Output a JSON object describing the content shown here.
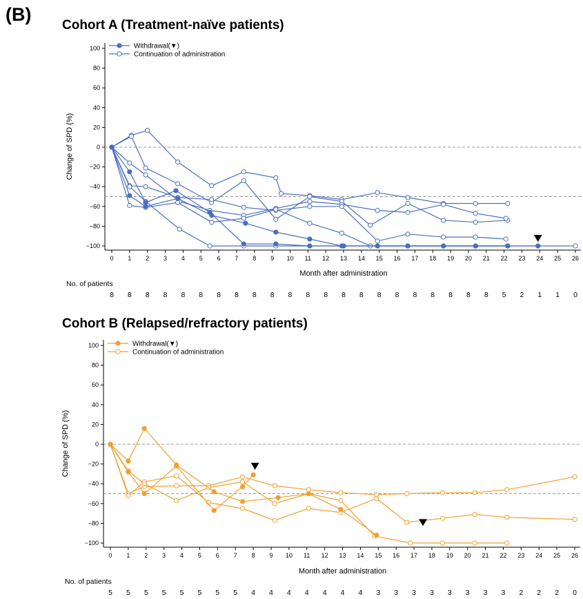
{
  "panel_label": "(B)",
  "chart_data": [
    {
      "type": "line",
      "title": "Cohort A (Treatment-naïve patients)",
      "xlabel": "Month after administration",
      "ylabel": "Change of SPD (%)",
      "xlim": [
        0,
        26
      ],
      "ylim": [
        -100,
        100
      ],
      "x_ticks": [
        0,
        1,
        2,
        3,
        4,
        5,
        6,
        7,
        8,
        9,
        10,
        11,
        12,
        13,
        14,
        15,
        16,
        17,
        18,
        19,
        20,
        21,
        22,
        23,
        24,
        25,
        26
      ],
      "y_ticks": [
        100,
        80,
        60,
        40,
        20,
        0,
        -20,
        -40,
        -60,
        -80,
        -100
      ],
      "reference_lines": [
        0,
        -50
      ],
      "grid": false,
      "legend_position": "top-left",
      "color": "#4a6fbf",
      "legend": [
        {
          "label": "Withdrawal(▼)",
          "marker": "filled-circle"
        },
        {
          "label": "Continuation of administration",
          "marker": "open-circle"
        }
      ],
      "withdrawal_markers": [
        {
          "x": 23.9,
          "y": -100
        }
      ],
      "patients_label": "No. of patients",
      "patients_counts": [
        8,
        8,
        8,
        8,
        8,
        8,
        8,
        8,
        8,
        8,
        8,
        8,
        8,
        8,
        8,
        8,
        8,
        8,
        8,
        8,
        8,
        8,
        5,
        2,
        1,
        1,
        0
      ],
      "series": [
        {
          "withdrawn": false,
          "points": [
            [
              0,
              0
            ],
            [
              1.1,
              12
            ],
            [
              2,
              17
            ],
            [
              3.7,
              -15
            ],
            [
              5.6,
              -39
            ],
            [
              7.4,
              -25
            ],
            [
              9.2,
              -31
            ],
            [
              9.5,
              -47
            ],
            [
              11.1,
              -49
            ],
            [
              12.9,
              -53
            ],
            [
              14.9,
              -46
            ],
            [
              16.6,
              -51
            ],
            [
              18.6,
              -57
            ],
            [
              20.4,
              -57
            ],
            [
              22.2,
              -57
            ]
          ]
        },
        {
          "withdrawn": false,
          "points": [
            [
              0,
              0
            ],
            [
              1.1,
              11
            ],
            [
              1.9,
              -21
            ],
            [
              3.7,
              -37
            ],
            [
              5.6,
              -56
            ],
            [
              7.4,
              -34
            ],
            [
              9.2,
              -73
            ],
            [
              11.1,
              -50
            ],
            [
              12.9,
              -55
            ],
            [
              14.5,
              -79
            ],
            [
              16.6,
              -57
            ],
            [
              18.6,
              -74
            ],
            [
              20.4,
              -76
            ],
            [
              22.2,
              -74
            ]
          ]
        },
        {
          "withdrawn": false,
          "points": [
            [
              0,
              0
            ],
            [
              1,
              -16
            ],
            [
              1.9,
              -28
            ],
            [
              3.8,
              -55
            ],
            [
              5.5,
              -64
            ],
            [
              7.4,
              -69
            ],
            [
              9.2,
              -62
            ],
            [
              11.1,
              -55
            ],
            [
              12.9,
              -58
            ],
            [
              14.9,
              -64
            ],
            [
              16.6,
              -66
            ],
            [
              18.6,
              -58
            ],
            [
              20.4,
              -67
            ],
            [
              22.1,
              -72
            ]
          ]
        },
        {
          "withdrawn": false,
          "points": [
            [
              0,
              0
            ],
            [
              1,
              -39
            ],
            [
              1.9,
              -40
            ],
            [
              3.7,
              -51
            ],
            [
              5.6,
              -53
            ],
            [
              7.4,
              -61
            ],
            [
              9.2,
              -64
            ],
            [
              11.1,
              -60
            ],
            [
              12.9,
              -60
            ],
            [
              14.9,
              -95
            ],
            [
              16.6,
              -88
            ],
            [
              18.6,
              -91
            ],
            [
              20.4,
              -91
            ],
            [
              22.1,
              -93
            ]
          ]
        },
        {
          "withdrawn": false,
          "points": [
            [
              0,
              0
            ],
            [
              1,
              -59
            ],
            [
              1.9,
              -61
            ],
            [
              3.7,
              -56
            ],
            [
              5.6,
              -76
            ],
            [
              7.4,
              -72
            ],
            [
              9.2,
              -63
            ],
            [
              11.1,
              -77
            ],
            [
              12.9,
              -87
            ],
            [
              14.5,
              -100
            ],
            [
              16.6,
              -100
            ],
            [
              18.6,
              -100
            ],
            [
              20.4,
              -100
            ],
            [
              22.2,
              -100
            ]
          ]
        },
        {
          "withdrawn": false,
          "points": [
            [
              0,
              0
            ],
            [
              1,
              -40
            ],
            [
              1.9,
              -55
            ],
            [
              3.8,
              -83
            ],
            [
              5.5,
              -100
            ],
            [
              7.4,
              -100
            ],
            [
              9.2,
              -100
            ],
            [
              11.1,
              -100
            ],
            [
              13,
              -100
            ],
            [
              14.9,
              -100
            ],
            [
              16.6,
              -100
            ],
            [
              18.6,
              -100
            ],
            [
              20.4,
              -100
            ],
            [
              22.2,
              -100
            ],
            [
              23.9,
              -100
            ],
            [
              26,
              -100
            ]
          ]
        },
        {
          "withdrawn": true,
          "points": [
            [
              0,
              0
            ],
            [
              1,
              -49
            ],
            [
              1.9,
              -60
            ],
            [
              3.7,
              -52
            ],
            [
              5.6,
              -69
            ],
            [
              7.5,
              -77
            ],
            [
              9.2,
              -86
            ],
            [
              11.1,
              -93
            ],
            [
              12.9,
              -100
            ],
            [
              14.9,
              -100
            ],
            [
              16.6,
              -100
            ],
            [
              18.6,
              -100
            ],
            [
              20.4,
              -100
            ],
            [
              22.2,
              -100
            ],
            [
              23.9,
              -100
            ]
          ]
        },
        {
          "withdrawn": true,
          "points": [
            [
              0,
              0
            ],
            [
              1,
              -25
            ],
            [
              1.9,
              -56
            ],
            [
              3.6,
              -44
            ],
            [
              5.5,
              -66
            ],
            [
              7.4,
              -98
            ],
            [
              9.2,
              -98
            ],
            [
              11.1,
              -100
            ],
            [
              13,
              -100
            ],
            [
              14.9,
              -100
            ],
            [
              16.6,
              -100
            ],
            [
              18.6,
              -100
            ],
            [
              20.4,
              -100
            ],
            [
              22.2,
              -100
            ]
          ]
        }
      ]
    },
    {
      "type": "line",
      "title": "Cohort B (Relapsed/refractory patients)",
      "xlabel": "Month after administration",
      "ylabel": "Change of SPD (%)",
      "xlim": [
        0,
        26
      ],
      "ylim": [
        -100,
        100
      ],
      "x_ticks": [
        0,
        1,
        2,
        3,
        4,
        5,
        6,
        7,
        8,
        9,
        10,
        11,
        12,
        13,
        14,
        15,
        16,
        17,
        18,
        19,
        20,
        21,
        22,
        23,
        24,
        25,
        26
      ],
      "y_ticks": [
        100,
        80,
        60,
        40,
        20,
        0,
        -20,
        -40,
        -60,
        -80,
        -100
      ],
      "reference_lines": [
        0,
        -50
      ],
      "grid": false,
      "legend_position": "top-left",
      "color": "#f0a030",
      "legend": [
        {
          "label": "Withdrawal(▼)",
          "marker": "filled-circle"
        },
        {
          "label": "Continuation of administration",
          "marker": "open-circle"
        }
      ],
      "withdrawal_markers": [
        {
          "x": 8.1,
          "y": -30
        },
        {
          "x": 17.5,
          "y": -87
        }
      ],
      "patients_label": "No. of patients",
      "patients_counts": [
        5,
        5,
        5,
        5,
        5,
        5,
        5,
        5,
        4,
        4,
        4,
        4,
        4,
        4,
        4,
        3,
        3,
        3,
        3,
        3,
        3,
        3,
        3,
        2,
        2,
        2,
        0
      ],
      "series": [
        {
          "withdrawn": false,
          "points": [
            [
              0,
              0
            ],
            [
              1,
              -50
            ],
            [
              1.9,
              -43
            ],
            [
              3.7,
              -42
            ],
            [
              5.5,
              -42
            ],
            [
              7.4,
              -33
            ],
            [
              9.2,
              -42
            ],
            [
              11.1,
              -46
            ],
            [
              12.9,
              -49
            ],
            [
              14.9,
              -51
            ],
            [
              16.6,
              -50
            ],
            [
              18.6,
              -49
            ],
            [
              20.4,
              -49
            ],
            [
              22.2,
              -46
            ],
            [
              26,
              -33
            ]
          ]
        },
        {
          "withdrawn": false,
          "points": [
            [
              0,
              0
            ],
            [
              1,
              -52
            ],
            [
              1.9,
              -38
            ],
            [
              3.7,
              -32
            ],
            [
              5.5,
              -59
            ],
            [
              7.4,
              -65
            ],
            [
              9.2,
              -77
            ],
            [
              11.1,
              -65
            ],
            [
              12.9,
              -69
            ],
            [
              14.9,
              -55
            ],
            [
              16.6,
              -79
            ],
            [
              18.6,
              -75
            ],
            [
              20.4,
              -71
            ],
            [
              22.2,
              -74
            ],
            [
              26,
              -76
            ]
          ]
        },
        {
          "withdrawn": false,
          "points": [
            [
              0,
              0
            ],
            [
              1,
              -27
            ],
            [
              1.9,
              -40
            ],
            [
              3.7,
              -57
            ],
            [
              5.5,
              -44
            ],
            [
              7.4,
              -38
            ],
            [
              9.2,
              -60
            ],
            [
              11.1,
              -50
            ],
            [
              12.9,
              -57
            ],
            [
              14.8,
              -93
            ],
            [
              16.8,
              -100
            ],
            [
              18.6,
              -100
            ],
            [
              20.4,
              -100
            ],
            [
              22.2,
              -100
            ]
          ]
        },
        {
          "withdrawn": true,
          "points": [
            [
              0,
              0
            ],
            [
              1,
              -17
            ],
            [
              1.9,
              16
            ],
            [
              3.7,
              -21
            ],
            [
              5.8,
              -48
            ],
            [
              7.4,
              -58
            ],
            [
              9.4,
              -54
            ],
            [
              11.1,
              -50
            ],
            [
              12.9,
              -66
            ],
            [
              14.9,
              -92
            ]
          ]
        },
        {
          "withdrawn": true,
          "points": [
            [
              0,
              0
            ],
            [
              1,
              -28
            ],
            [
              1.9,
              -50
            ],
            [
              3.7,
              -22
            ],
            [
              5.8,
              -67
            ],
            [
              7.4,
              -43
            ],
            [
              8,
              -31
            ]
          ]
        }
      ]
    }
  ]
}
